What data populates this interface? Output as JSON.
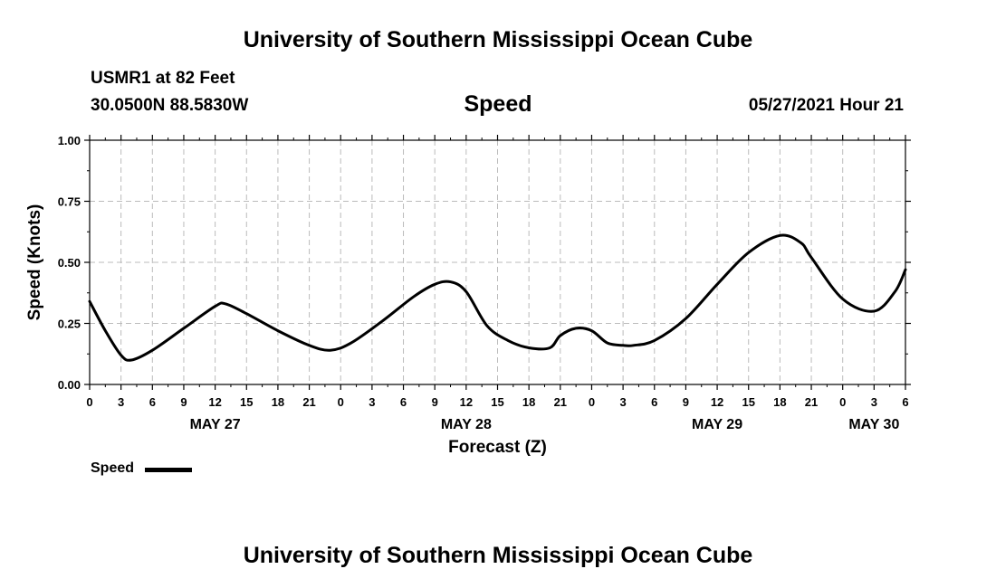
{
  "header": {
    "title": "University of Southern Mississippi Ocean Cube",
    "station": "USMR1 at 82 Feet",
    "coords": "30.0500N  88.5830W",
    "subtitle": "Speed",
    "datetime": "05/27/2021 Hour 21"
  },
  "footer": {
    "title": "University of Southern Mississippi Ocean Cube"
  },
  "legend": {
    "label": "Speed"
  },
  "chart_data": {
    "type": "line",
    "title": "Speed",
    "xlabel": "Forecast (Z)",
    "ylabel": "Speed (Knots)",
    "ylim": [
      0,
      1
    ],
    "yticks": [
      "0.00",
      "0.25",
      "0.50",
      "0.75",
      "1.00"
    ],
    "xlim_hours": [
      0,
      78
    ],
    "xtick_labels": [
      "0",
      "3",
      "6",
      "9",
      "12",
      "15",
      "18",
      "21",
      "0",
      "3",
      "6",
      "9",
      "12",
      "15",
      "18",
      "21",
      "0",
      "3",
      "6",
      "9",
      "12",
      "15",
      "18",
      "21",
      "0",
      "3",
      "6"
    ],
    "date_labels": [
      {
        "label": "MAY 27",
        "hour": 12
      },
      {
        "label": "MAY 28",
        "hour": 36
      },
      {
        "label": "MAY 29",
        "hour": 60
      },
      {
        "label": "MAY 30",
        "hour": 75
      }
    ],
    "grid": true,
    "line_color": "#000000",
    "series": [
      {
        "name": "Speed",
        "x": [
          0,
          1.5,
          3,
          4,
          6,
          9,
          12,
          13,
          15,
          18,
          21,
          23,
          25,
          28,
          31,
          33,
          34.5,
          36,
          38,
          40,
          42,
          44,
          45,
          46.5,
          48,
          49.5,
          51,
          52,
          54,
          57,
          60,
          63,
          66,
          68,
          69,
          72,
          75,
          77,
          78
        ],
        "y": [
          0.34,
          0.22,
          0.12,
          0.1,
          0.14,
          0.23,
          0.32,
          0.33,
          0.29,
          0.22,
          0.16,
          0.14,
          0.17,
          0.26,
          0.36,
          0.41,
          0.42,
          0.38,
          0.24,
          0.18,
          0.15,
          0.15,
          0.2,
          0.23,
          0.22,
          0.17,
          0.16,
          0.16,
          0.18,
          0.27,
          0.41,
          0.54,
          0.61,
          0.58,
          0.52,
          0.35,
          0.3,
          0.38,
          0.47
        ]
      }
    ]
  }
}
